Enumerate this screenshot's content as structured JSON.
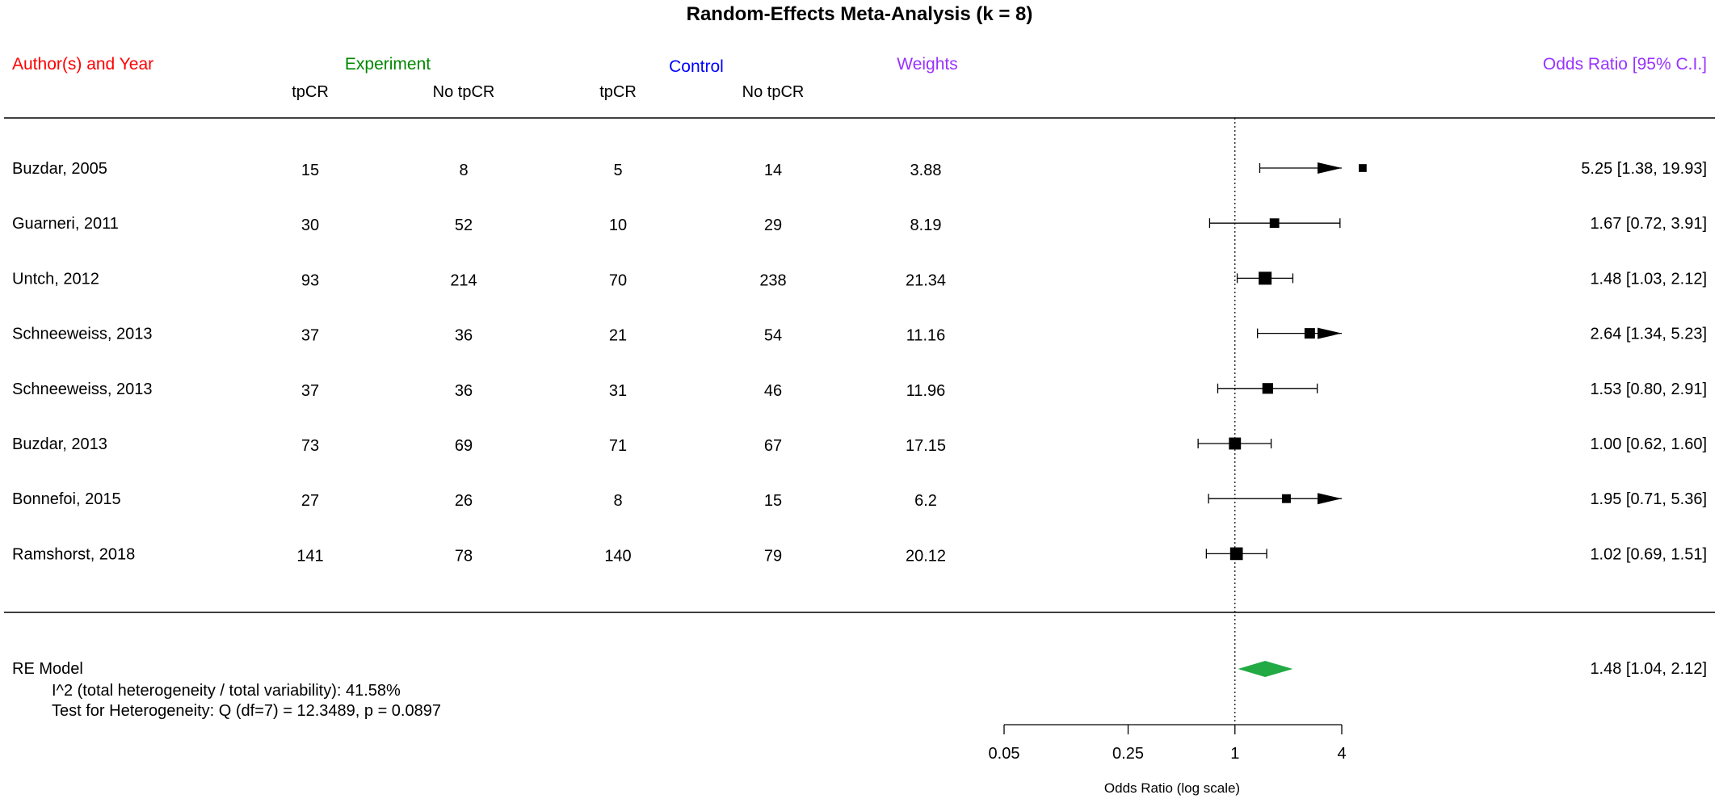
{
  "colors": {
    "author_header": "#ff0000",
    "experiment_header": "#008800",
    "control_header": "#0000ff",
    "weights_header": "#9933ff",
    "or_header": "#9933ff",
    "summary_diamond": "#22aa44"
  },
  "headers": {
    "author": "Author(s) and Year",
    "experiment": "Experiment",
    "control": "Control",
    "weights": "Weights",
    "or": "Odds Ratio [95% C.I.]",
    "sub_tpcr": "tpCR",
    "sub_no_tpcr": "No tpCR"
  },
  "chart_data": {
    "type": "forest",
    "title": "Random-Effects Meta-Analysis (k = 8)",
    "xlabel": "Odds Ratio (log scale)",
    "x_scale": "log",
    "xlim": [
      0.05,
      4
    ],
    "x_ticks": [
      0.05,
      0.25,
      1,
      4
    ],
    "x_tick_labels": [
      "0.05",
      "0.25",
      "1",
      "4"
    ],
    "reference_line": 1,
    "studies": [
      {
        "label": "Buzdar, 2005",
        "exp_tpcr": "15",
        "exp_no": "8",
        "ctl_tpcr": "5",
        "ctl_no": "14",
        "weight": "3.88",
        "or": 5.25,
        "lo": 1.38,
        "hi": 19.93,
        "ci_text": "5.25 [1.38, 19.93]"
      },
      {
        "label": "Guarneri, 2011",
        "exp_tpcr": "30",
        "exp_no": "52",
        "ctl_tpcr": "10",
        "ctl_no": "29",
        "weight": "8.19",
        "or": 1.67,
        "lo": 0.72,
        "hi": 3.91,
        "ci_text": "1.67 [0.72,  3.91]"
      },
      {
        "label": "Untch, 2012",
        "exp_tpcr": "93",
        "exp_no": "214",
        "ctl_tpcr": "70",
        "ctl_no": "238",
        "weight": "21.34",
        "or": 1.48,
        "lo": 1.03,
        "hi": 2.12,
        "ci_text": "1.48 [1.03,  2.12]"
      },
      {
        "label": "Schneeweiss, 2013",
        "exp_tpcr": "37",
        "exp_no": "36",
        "ctl_tpcr": "21",
        "ctl_no": "54",
        "weight": "11.16",
        "or": 2.64,
        "lo": 1.34,
        "hi": 5.23,
        "ci_text": "2.64 [1.34,  5.23]"
      },
      {
        "label": "Schneeweiss, 2013",
        "exp_tpcr": "37",
        "exp_no": "36",
        "ctl_tpcr": "31",
        "ctl_no": "46",
        "weight": "11.96",
        "or": 1.53,
        "lo": 0.8,
        "hi": 2.91,
        "ci_text": "1.53 [0.80,  2.91]"
      },
      {
        "label": "Buzdar, 2013",
        "exp_tpcr": "73",
        "exp_no": "69",
        "ctl_tpcr": "71",
        "ctl_no": "67",
        "weight": "17.15",
        "or": 1.0,
        "lo": 0.62,
        "hi": 1.6,
        "ci_text": "1.00 [0.62,  1.60]"
      },
      {
        "label": "Bonnefoi, 2015",
        "exp_tpcr": "27",
        "exp_no": "26",
        "ctl_tpcr": "8",
        "ctl_no": "15",
        "weight": "6.2",
        "or": 1.95,
        "lo": 0.71,
        "hi": 5.36,
        "ci_text": "1.95 [0.71,  5.36]"
      },
      {
        "label": "Ramshorst, 2018",
        "exp_tpcr": "141",
        "exp_no": "78",
        "ctl_tpcr": "140",
        "ctl_no": "79",
        "weight": "20.12",
        "or": 1.02,
        "lo": 0.69,
        "hi": 1.51,
        "ci_text": "1.02 [0.69,  1.51]"
      }
    ],
    "summary": {
      "label": "RE Model",
      "or": 1.48,
      "lo": 1.04,
      "hi": 2.12,
      "ci_text": "1.48 [1.04,  2.12]",
      "i2_text": "I^2 (total heterogeneity / total variability): 41.58%",
      "q_text": "Test for Heterogeneity: Q (df=7) = 12.3489, p = 0.0897"
    }
  }
}
